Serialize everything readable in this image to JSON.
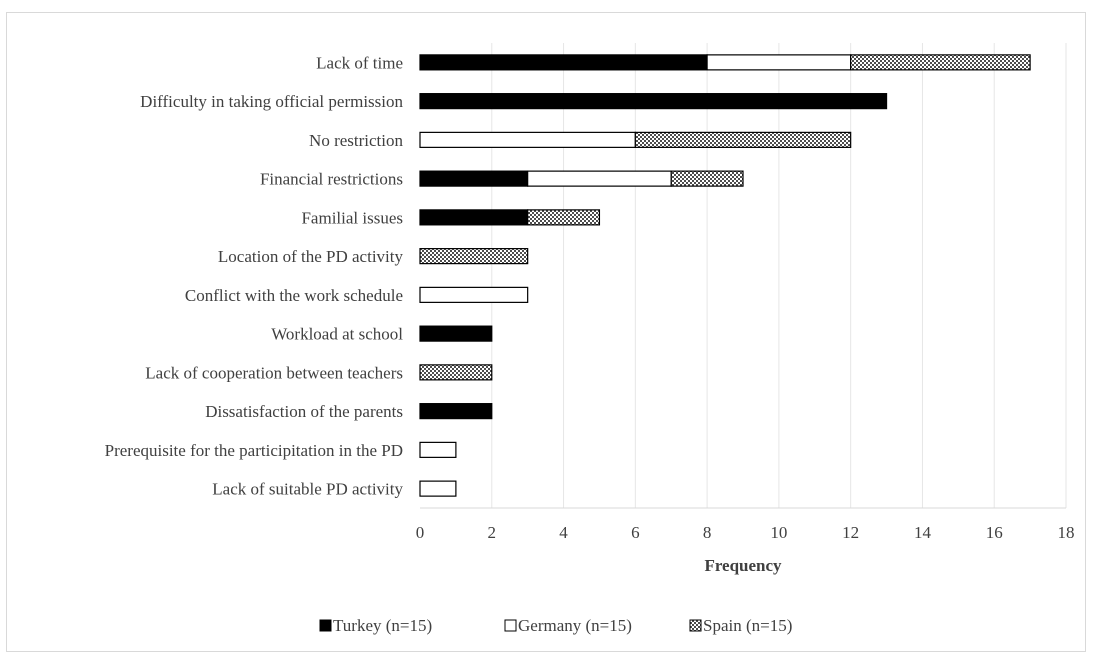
{
  "chart_data": {
    "type": "bar",
    "orientation": "horizontal",
    "stacked": true,
    "categories": [
      "Lack of time",
      "Difficulty in taking official permission",
      "No restriction",
      "Financial restrictions",
      "Familial issues",
      "Location of the PD activity",
      "Conflict with the work schedule",
      "Workload at school",
      "Lack of cooperation between teachers",
      "Dissatisfaction of the parents",
      "Prerequisite for the participitation in the PD",
      "Lack of suitable PD activity"
    ],
    "series": [
      {
        "name": "Turkey (n=15)",
        "color": "#000000",
        "pattern": "solid",
        "values": [
          8,
          13,
          0,
          3,
          3,
          0,
          0,
          2,
          0,
          2,
          0,
          0
        ]
      },
      {
        "name": "Germany (n=15)",
        "color": "#ffffff",
        "pattern": "outline",
        "values": [
          4,
          0,
          6,
          4,
          0,
          0,
          3,
          0,
          0,
          0,
          1,
          1
        ]
      },
      {
        "name": "Spain (n=15)",
        "color": "#808080",
        "pattern": "checker",
        "values": [
          5,
          0,
          6,
          2,
          2,
          3,
          0,
          0,
          2,
          0,
          0,
          0
        ]
      }
    ],
    "xlabel": "Frequency",
    "ylabel": "",
    "xlim": [
      0,
      18
    ],
    "xticks": [
      0,
      2,
      4,
      6,
      8,
      10,
      12,
      14,
      16,
      18
    ],
    "grid": true,
    "legend_position": "bottom"
  }
}
